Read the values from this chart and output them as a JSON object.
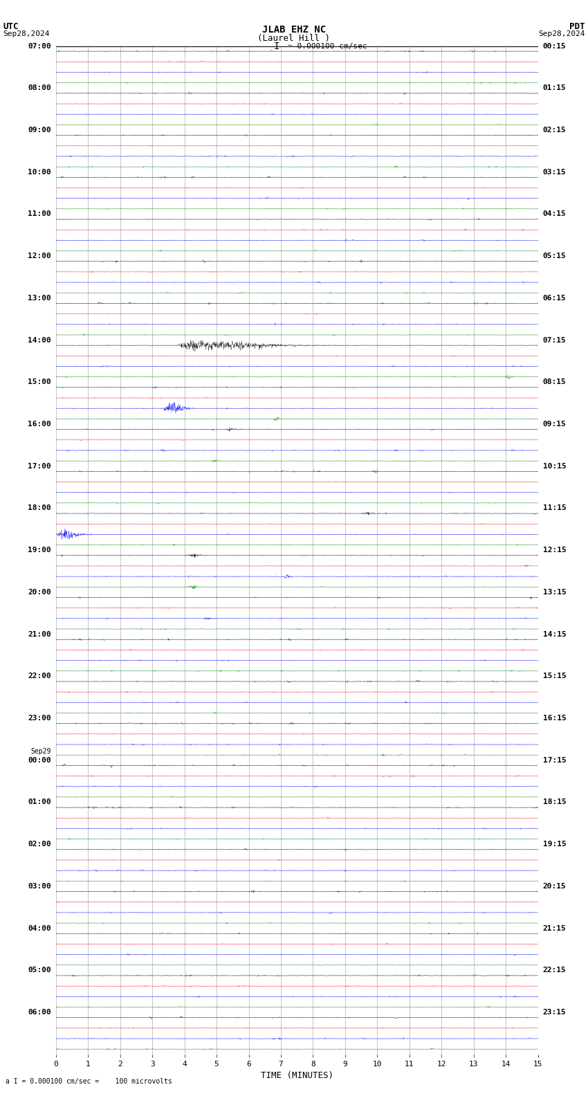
{
  "title_line1": "JLAB EHZ NC",
  "title_line2": "(Laurel Hill )",
  "scale_text": "= 0.000100 cm/sec",
  "footer_text": "= 0.000100 cm/sec =    100 microvolts",
  "utc_label": "UTC",
  "pdt_label": "PDT",
  "date_left": "Sep28,2024",
  "date_right": "Sep28,2024",
  "utc_times": [
    "07:00",
    "08:00",
    "09:00",
    "10:00",
    "11:00",
    "12:00",
    "13:00",
    "14:00",
    "15:00",
    "16:00",
    "17:00",
    "18:00",
    "19:00",
    "20:00",
    "21:00",
    "22:00",
    "23:00",
    "Sep29\n00:00",
    "01:00",
    "02:00",
    "03:00",
    "04:00",
    "05:00",
    "06:00"
  ],
  "pdt_times": [
    "00:15",
    "01:15",
    "02:15",
    "03:15",
    "04:15",
    "05:15",
    "06:15",
    "07:15",
    "08:15",
    "09:15",
    "10:15",
    "11:15",
    "12:15",
    "13:15",
    "14:15",
    "15:15",
    "16:15",
    "17:15",
    "18:15",
    "19:15",
    "20:15",
    "21:15",
    "22:15",
    "23:15"
  ],
  "xlabel": "TIME (MINUTES)",
  "x_ticks": [
    0,
    1,
    2,
    3,
    4,
    5,
    6,
    7,
    8,
    9,
    10,
    11,
    12,
    13,
    14,
    15
  ],
  "bg_color": "#ffffff",
  "trace_colors": [
    "black",
    "red",
    "blue",
    "green"
  ],
  "n_rows": 24,
  "n_samples": 1800,
  "channel_amp": [
    0.012,
    0.008,
    0.012,
    0.01
  ],
  "trace_lw": 0.3,
  "grid_color": "#999999",
  "grid_lw": 0.4,
  "title_fontsize": 10,
  "label_fontsize": 8,
  "tick_fontsize": 8
}
